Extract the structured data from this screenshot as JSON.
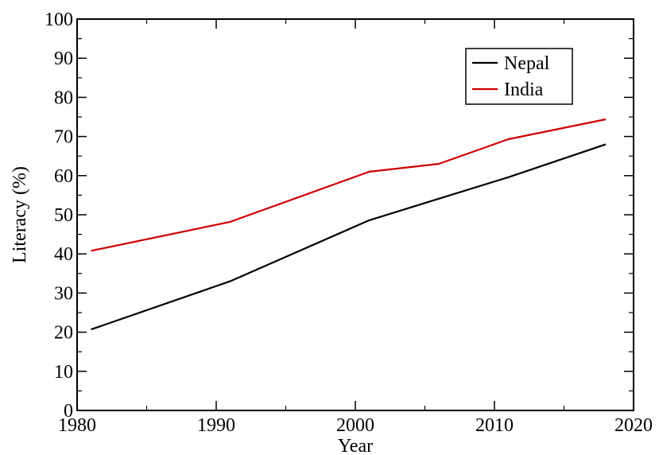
{
  "chart_data": {
    "type": "line",
    "xlabel": "Year",
    "ylabel": "Literacy (%)",
    "xlim": [
      1980,
      2020
    ],
    "ylim": [
      0,
      100
    ],
    "x_ticks": [
      "1980",
      "1990",
      "2000",
      "2010",
      "2020"
    ],
    "y_ticks": [
      "0",
      "10",
      "20",
      "30",
      "40",
      "50",
      "60",
      "70",
      "80",
      "90",
      "100"
    ],
    "grid": false,
    "legend_position": "top-right",
    "series": [
      {
        "name": "Nepal",
        "color": "#000000",
        "x": [
          1981,
          1991,
          2001,
          2006,
          2011,
          2018
        ],
        "y": [
          20.7,
          33.0,
          48.6,
          54.1,
          59.6,
          68.0
        ]
      },
      {
        "name": "India",
        "color": "#cc0000",
        "x": [
          1981,
          1991,
          2001,
          2006,
          2011,
          2018
        ],
        "y": [
          40.8,
          48.2,
          61.0,
          63.0,
          69.3,
          74.4
        ]
      }
    ]
  }
}
